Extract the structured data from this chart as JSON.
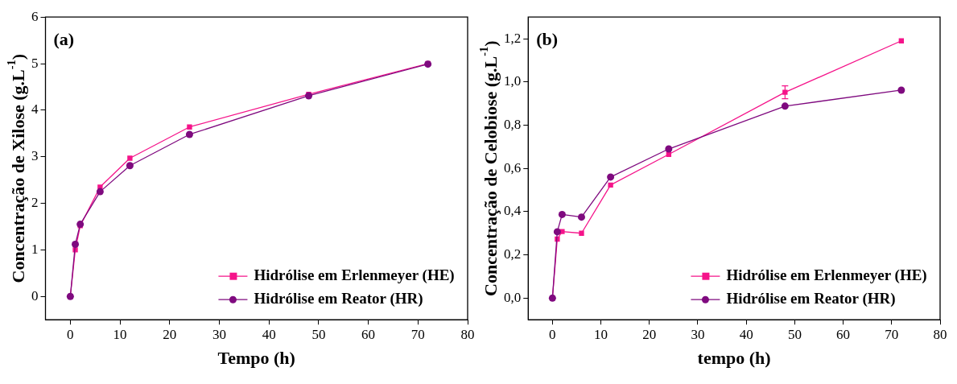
{
  "chart_data": [
    {
      "type": "line",
      "annotations": [
        "(a)"
      ],
      "xlabel": "Tempo (h)",
      "ylabel": "Concentração de Xilose (g.L$^{-1}$)",
      "x": [
        0,
        1,
        2,
        6,
        12,
        24,
        48,
        72
      ],
      "xlim": [
        -5,
        80
      ],
      "xticks": [
        0,
        10,
        20,
        30,
        40,
        50,
        60,
        70,
        80
      ],
      "ylim": [
        -0.5,
        6
      ],
      "yticks": [
        0,
        1,
        2,
        3,
        4,
        5,
        6
      ],
      "grid": false,
      "legend": "bottom right",
      "line_style": "solid",
      "series": [
        {
          "name": "Hidrólise em Erlenmeyer (HE)",
          "color": "#f5148a",
          "marker": "square",
          "values": [
            0,
            1.0,
            1.52,
            2.35,
            2.97,
            3.64,
            4.34,
            5.0
          ]
        },
        {
          "name": "Hidrólise em Reator (HR)",
          "color": "#7f0a7f",
          "marker": "circle",
          "values": [
            0,
            1.12,
            1.55,
            2.25,
            2.81,
            3.48,
            4.31,
            4.99
          ]
        }
      ]
    },
    {
      "type": "line",
      "annotations": [
        "(b)"
      ],
      "xlabel": "tempo (h)",
      "ylabel": "Concentração de Celobiose (g.L$^{-1}$)",
      "x": [
        0,
        1,
        2,
        6,
        12,
        24,
        48,
        72
      ],
      "xlim": [
        -5,
        80
      ],
      "xticks": [
        0,
        10,
        20,
        30,
        40,
        50,
        60,
        70,
        80
      ],
      "ylim": [
        -0.1,
        1.3
      ],
      "yticks": [
        {
          "value": 0,
          "label": "0,0"
        },
        {
          "value": 0.2,
          "label": "0,2"
        },
        {
          "value": 0.4,
          "label": "0,4"
        },
        {
          "value": 0.6,
          "label": "0,6"
        },
        {
          "value": 0.8,
          "label": "0,8"
        },
        {
          "value": 1.0,
          "label": "1,0"
        },
        {
          "value": 1.2,
          "label": "1,2"
        }
      ],
      "grid": false,
      "legend": "bottom right",
      "line_style": "solid",
      "series": [
        {
          "name": "Hidrólise em Erlenmeyer (HE)",
          "color": "#f5148a",
          "marker": "square",
          "values": [
            0,
            0.273,
            0.308,
            0.3,
            0.523,
            0.665,
            0.952,
            1.19
          ],
          "errors": [
            null,
            null,
            null,
            null,
            null,
            null,
            0.03,
            null
          ]
        },
        {
          "name": "Hidrólise em Reator (HR)",
          "color": "#7f0a7f",
          "marker": "circle",
          "values": [
            0,
            0.307,
            0.387,
            0.375,
            0.56,
            0.69,
            0.888,
            0.962
          ]
        }
      ]
    }
  ]
}
